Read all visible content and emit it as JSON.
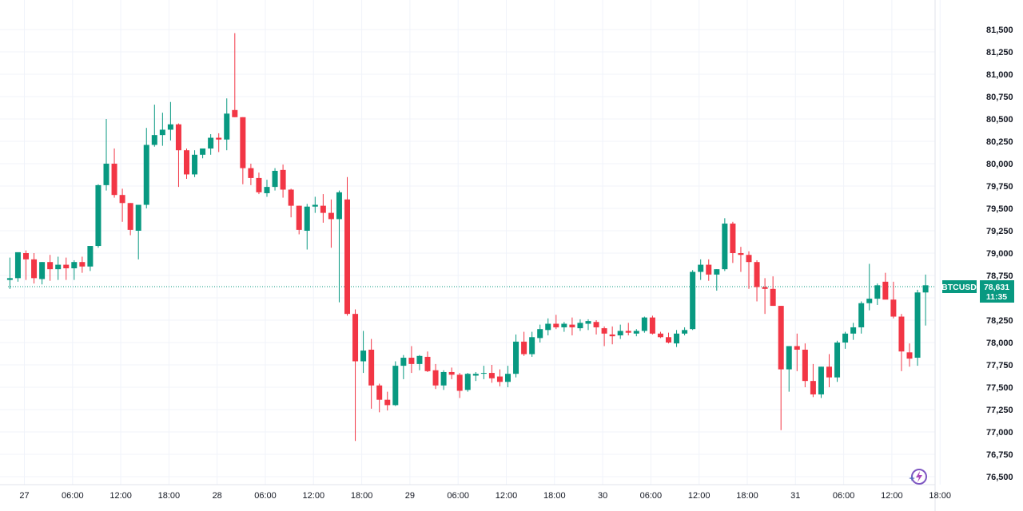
{
  "chart_data": {
    "type": "candlestick",
    "symbol": "BTCUSD",
    "last_price": "78,631",
    "countdown": "11:35",
    "colors": {
      "up": "#089981",
      "down": "#f23645",
      "label_bg": "#089981",
      "grid": "#f0f3fa",
      "text": "#131722"
    },
    "y_ticks": [
      "81,500",
      "81,250",
      "81,000",
      "80,750",
      "80,500",
      "80,250",
      "80,000",
      "79,750",
      "79,500",
      "79,250",
      "79,000",
      "78,750",
      "78,500",
      "78,250",
      "78,000",
      "77,750",
      "77,500",
      "77,250",
      "77,000",
      "76,750",
      "76,500"
    ],
    "x_ticks": [
      "27",
      "06:00",
      "12:00",
      "18:00",
      "28",
      "06:00",
      "12:00",
      "18:00",
      "29",
      "06:00",
      "12:00",
      "18:00",
      "30",
      "06:00",
      "12:00",
      "18:00",
      "31",
      "06:00",
      "12:00",
      "18:00"
    ],
    "ylim": [
      76450,
      81750
    ],
    "grid": true,
    "interval_hours": 1,
    "candles": [
      [
        78700,
        78950,
        78600,
        78720
      ],
      [
        78720,
        79000,
        78680,
        79010
      ],
      [
        79000,
        79030,
        78700,
        78930
      ],
      [
        78930,
        79000,
        78660,
        78720
      ],
      [
        78710,
        78900,
        78650,
        78900
      ],
      [
        78900,
        78980,
        78690,
        78820
      ],
      [
        78820,
        78960,
        78700,
        78870
      ],
      [
        78870,
        78950,
        78700,
        78830
      ],
      [
        78830,
        78920,
        78700,
        78900
      ],
      [
        78900,
        78960,
        78780,
        78850
      ],
      [
        78850,
        79070,
        78800,
        79080
      ],
      [
        79080,
        79770,
        79060,
        79760
      ],
      [
        79760,
        80500,
        79700,
        80000
      ],
      [
        80000,
        80170,
        79620,
        79650
      ],
      [
        79650,
        79720,
        79350,
        79560
      ],
      [
        79560,
        79560,
        79200,
        79260
      ],
      [
        79250,
        79540,
        78930,
        79540
      ],
      [
        79540,
        80400,
        79500,
        80210
      ],
      [
        80210,
        80660,
        80190,
        80320
      ],
      [
        80320,
        80570,
        80200,
        80380
      ],
      [
        80380,
        80690,
        80260,
        80440
      ],
      [
        80440,
        80450,
        79740,
        80150
      ],
      [
        80150,
        80170,
        79830,
        79880
      ],
      [
        79880,
        80150,
        79850,
        80100
      ],
      [
        80100,
        80160,
        80060,
        80170
      ],
      [
        80170,
        80330,
        80100,
        80290
      ],
      [
        80290,
        80340,
        80130,
        80270
      ],
      [
        80270,
        80730,
        80150,
        80560
      ],
      [
        80600,
        81460,
        80520,
        80520
      ],
      [
        80520,
        80520,
        79770,
        79950
      ],
      [
        79950,
        80000,
        79760,
        79840
      ],
      [
        79840,
        79900,
        79660,
        79680
      ],
      [
        79670,
        79820,
        79630,
        79740
      ],
      [
        79740,
        79950,
        79700,
        79920
      ],
      [
        79930,
        79990,
        79620,
        79710
      ],
      [
        79710,
        79720,
        79400,
        79530
      ],
      [
        79530,
        79530,
        79210,
        79260
      ],
      [
        79250,
        79550,
        79040,
        79520
      ],
      [
        79520,
        79630,
        79450,
        79540
      ],
      [
        79530,
        79660,
        79340,
        79450
      ],
      [
        79450,
        79600,
        79060,
        79380
      ],
      [
        79380,
        79700,
        78450,
        79680
      ],
      [
        79600,
        79850,
        78300,
        78320
      ],
      [
        78320,
        78370,
        76900,
        77790
      ],
      [
        77790,
        78130,
        77660,
        77910
      ],
      [
        77920,
        78040,
        77260,
        77520
      ],
      [
        77520,
        77540,
        77220,
        77360
      ],
      [
        77360,
        77450,
        77240,
        77300
      ],
      [
        77300,
        77790,
        77290,
        77740
      ],
      [
        77740,
        77860,
        77590,
        77830
      ],
      [
        77830,
        77960,
        77660,
        77760
      ],
      [
        77760,
        77860,
        77690,
        77850
      ],
      [
        77840,
        77900,
        77670,
        77680
      ],
      [
        77690,
        77760,
        77480,
        77520
      ],
      [
        77520,
        77690,
        77470,
        77670
      ],
      [
        77670,
        77720,
        77590,
        77640
      ],
      [
        77640,
        77660,
        77380,
        77460
      ],
      [
        77470,
        77660,
        77450,
        77650
      ],
      [
        77630,
        77670,
        77570,
        77650
      ],
      [
        77660,
        77740,
        77590,
        77660
      ],
      [
        77660,
        77750,
        77550,
        77600
      ],
      [
        77620,
        77700,
        77510,
        77560
      ],
      [
        77560,
        77740,
        77500,
        77650
      ],
      [
        77650,
        78090,
        77610,
        78010
      ],
      [
        78010,
        78120,
        77850,
        77870
      ],
      [
        77870,
        78120,
        77840,
        78060
      ],
      [
        78050,
        78200,
        78000,
        78150
      ],
      [
        78140,
        78270,
        78080,
        78210
      ],
      [
        78210,
        78310,
        78150,
        78170
      ],
      [
        78170,
        78230,
        78120,
        78210
      ],
      [
        78200,
        78280,
        78080,
        78170
      ],
      [
        78160,
        78260,
        78130,
        78220
      ],
      [
        78210,
        78260,
        78140,
        78240
      ],
      [
        78230,
        78250,
        78090,
        78170
      ],
      [
        78160,
        78180,
        77960,
        78100
      ],
      [
        78090,
        78180,
        77980,
        78070
      ],
      [
        78080,
        78200,
        78040,
        78130
      ],
      [
        78130,
        78220,
        78080,
        78110
      ],
      [
        78100,
        78150,
        78070,
        78130
      ],
      [
        78130,
        78290,
        78110,
        78280
      ],
      [
        78280,
        78300,
        78090,
        78100
      ],
      [
        78100,
        78120,
        78050,
        78060
      ],
      [
        78060,
        78110,
        77990,
        78000
      ],
      [
        77990,
        78140,
        77950,
        78100
      ],
      [
        78100,
        78170,
        78080,
        78140
      ],
      [
        78150,
        78810,
        78140,
        78790
      ],
      [
        78790,
        78930,
        78700,
        78870
      ],
      [
        78870,
        78930,
        78690,
        78760
      ],
      [
        78760,
        78820,
        78580,
        78820
      ],
      [
        78820,
        79390,
        78800,
        79330
      ],
      [
        79330,
        79350,
        78890,
        79000
      ],
      [
        79000,
        79070,
        78790,
        78980
      ],
      [
        78980,
        79020,
        78600,
        78900
      ],
      [
        78900,
        78920,
        78460,
        78620
      ],
      [
        78620,
        78720,
        78320,
        78600
      ],
      [
        78600,
        78740,
        78410,
        78410
      ],
      [
        78410,
        78410,
        77020,
        77700
      ],
      [
        77700,
        77950,
        77450,
        77960
      ],
      [
        77960,
        78100,
        77680,
        77920
      ],
      [
        77920,
        77990,
        77500,
        77570
      ],
      [
        77570,
        77760,
        77390,
        77420
      ],
      [
        77420,
        77730,
        77380,
        77730
      ],
      [
        77730,
        77870,
        77500,
        77610
      ],
      [
        77610,
        78020,
        77560,
        78000
      ],
      [
        78000,
        78120,
        77930,
        78100
      ],
      [
        78100,
        78220,
        78030,
        78170
      ],
      [
        78170,
        78460,
        78100,
        78440
      ],
      [
        78440,
        78880,
        78360,
        78490
      ],
      [
        78490,
        78660,
        78420,
        78640
      ],
      [
        78680,
        78780,
        78520,
        78480
      ],
      [
        78480,
        78680,
        78270,
        78290
      ],
      [
        78290,
        78320,
        77680,
        77900
      ],
      [
        77890,
        77990,
        77730,
        77820
      ],
      [
        77830,
        78590,
        77740,
        78560
      ],
      [
        78560,
        78760,
        78190,
        78640
      ]
    ]
  }
}
